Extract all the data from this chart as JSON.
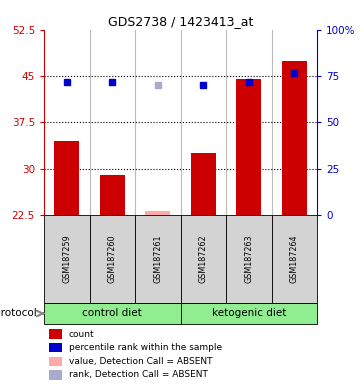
{
  "title": "GDS2738 / 1423413_at",
  "samples": [
    "GSM187259",
    "GSM187260",
    "GSM187261",
    "GSM187262",
    "GSM187263",
    "GSM187264"
  ],
  "bar_values": [
    34.5,
    29.0,
    null,
    32.5,
    44.5,
    47.5
  ],
  "bar_absent_values": [
    null,
    null,
    23.2,
    null,
    null,
    null
  ],
  "rank_values": [
    44.0,
    44.0,
    null,
    43.5,
    44.0,
    45.5
  ],
  "rank_absent_values": [
    null,
    null,
    43.5,
    null,
    null,
    null
  ],
  "bar_color": "#cc0000",
  "bar_absent_color": "#ffaaaa",
  "rank_color": "#0000cc",
  "rank_absent_color": "#aaaacc",
  "ylim_left": [
    22.5,
    52.5
  ],
  "ylim_right": [
    0,
    100
  ],
  "yticks_left": [
    22.5,
    30.0,
    37.5,
    45.0,
    52.5
  ],
  "yticks_right": [
    0,
    25,
    50,
    75,
    100
  ],
  "ytick_labels_left": [
    "22.5",
    "30",
    "37.5",
    "45",
    "52.5"
  ],
  "ytick_labels_right": [
    "0",
    "25",
    "50",
    "75",
    "100%"
  ],
  "hlines": [
    30.0,
    37.5,
    45.0
  ],
  "groups": [
    {
      "label": "control diet",
      "samples": [
        0,
        1,
        2
      ],
      "color": "#90ee90"
    },
    {
      "label": "ketogenic diet",
      "samples": [
        3,
        4,
        5
      ],
      "color": "#90ee90"
    }
  ],
  "protocol_label": "protocol",
  "legend_items": [
    {
      "color": "#cc0000",
      "label": "count"
    },
    {
      "color": "#0000cc",
      "label": "percentile rank within the sample"
    },
    {
      "color": "#ffaaaa",
      "label": "value, Detection Call = ABSENT"
    },
    {
      "color": "#aaaacc",
      "label": "rank, Detection Call = ABSENT"
    }
  ],
  "tick_color_left": "#cc0000",
  "tick_color_right": "#0000cc",
  "bar_bottom": 22.5,
  "figsize": [
    3.61,
    3.84
  ],
  "dpi": 100
}
